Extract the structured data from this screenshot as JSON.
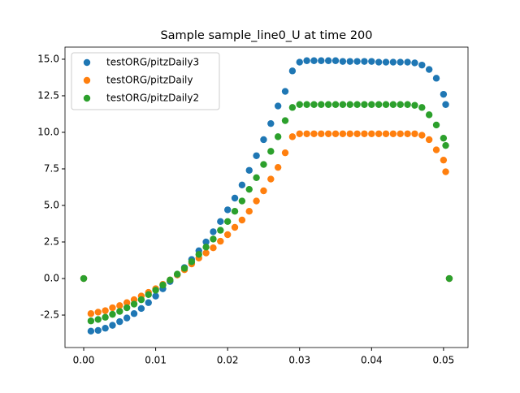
{
  "chart_data": {
    "type": "scatter",
    "title": "Sample sample_line0_U at time 200",
    "x": [
      0,
      0.001,
      0.002,
      0.003,
      0.004,
      0.005,
      0.006,
      0.007,
      0.008,
      0.009,
      0.01,
      0.011,
      0.012,
      0.013,
      0.014,
      0.015,
      0.016,
      0.017,
      0.018,
      0.019,
      0.02,
      0.021,
      0.022,
      0.023,
      0.024,
      0.025,
      0.026,
      0.027,
      0.028,
      0.029,
      0.03,
      0.031,
      0.032,
      0.033,
      0.034,
      0.035,
      0.036,
      0.037,
      0.038,
      0.039,
      0.04,
      0.041,
      0.042,
      0.043,
      0.044,
      0.045,
      0.046,
      0.047,
      0.048,
      0.049,
      0.05,
      0.0503,
      0.0508
    ],
    "series": [
      {
        "name": "testORG/pitzDaily3",
        "color": "#1f77b4",
        "values": [
          0,
          -3.6,
          -3.55,
          -3.4,
          -3.2,
          -2.95,
          -2.7,
          -2.4,
          -2.05,
          -1.65,
          -1.2,
          -0.7,
          -0.2,
          0.25,
          0.75,
          1.3,
          1.9,
          2.5,
          3.2,
          3.9,
          4.7,
          5.5,
          6.4,
          7.4,
          8.4,
          9.5,
          10.6,
          11.8,
          12.8,
          14.2,
          14.8,
          14.9,
          14.9,
          14.9,
          14.9,
          14.9,
          14.85,
          14.85,
          14.85,
          14.85,
          14.85,
          14.8,
          14.8,
          14.8,
          14.8,
          14.8,
          14.75,
          14.6,
          14.3,
          13.7,
          12.6,
          11.9,
          0
        ]
      },
      {
        "name": "testORG/pitzDaily",
        "color": "#ff7f0e",
        "values": [
          0,
          -2.4,
          -2.3,
          -2.2,
          -2.0,
          -1.85,
          -1.65,
          -1.45,
          -1.2,
          -0.95,
          -0.7,
          -0.4,
          -0.1,
          0.25,
          0.6,
          1.0,
          1.4,
          1.75,
          2.1,
          2.55,
          3.0,
          3.5,
          4.0,
          4.6,
          5.3,
          6.0,
          6.8,
          7.6,
          8.6,
          9.7,
          9.9,
          9.9,
          9.9,
          9.9,
          9.9,
          9.9,
          9.9,
          9.9,
          9.9,
          9.9,
          9.9,
          9.9,
          9.9,
          9.9,
          9.9,
          9.9,
          9.9,
          9.8,
          9.5,
          8.8,
          8.1,
          7.3,
          0
        ]
      },
      {
        "name": "testORG/pitzDaily2",
        "color": "#2ca02c",
        "values": [
          0,
          -2.9,
          -2.8,
          -2.65,
          -2.45,
          -2.25,
          -2.0,
          -1.75,
          -1.45,
          -1.1,
          -0.8,
          -0.45,
          -0.1,
          0.3,
          0.7,
          1.15,
          1.65,
          2.15,
          2.7,
          3.3,
          3.9,
          4.6,
          5.3,
          6.1,
          6.9,
          7.8,
          8.7,
          9.7,
          10.8,
          11.7,
          11.9,
          11.9,
          11.9,
          11.9,
          11.9,
          11.9,
          11.9,
          11.9,
          11.9,
          11.9,
          11.9,
          11.9,
          11.9,
          11.9,
          11.9,
          11.9,
          11.85,
          11.7,
          11.2,
          10.5,
          9.6,
          9.1,
          0
        ]
      }
    ],
    "xlim": [
      -0.0026,
      0.0534
    ],
    "ylim": [
      -4.72,
      15.83
    ],
    "xticks": [
      {
        "value": 0,
        "label": "0.00"
      },
      0.01,
      0.02,
      0.03,
      0.04,
      0.05
    ],
    "yticks": [
      -2.5,
      {
        "value": 0,
        "label": "0.0"
      },
      2.5,
      {
        "value": 5,
        "label": "5.0"
      },
      7.5,
      {
        "value": 10,
        "label": "10.0"
      },
      12.5,
      {
        "value": 15,
        "label": "15.0"
      }
    ],
    "legend": "upper left"
  }
}
